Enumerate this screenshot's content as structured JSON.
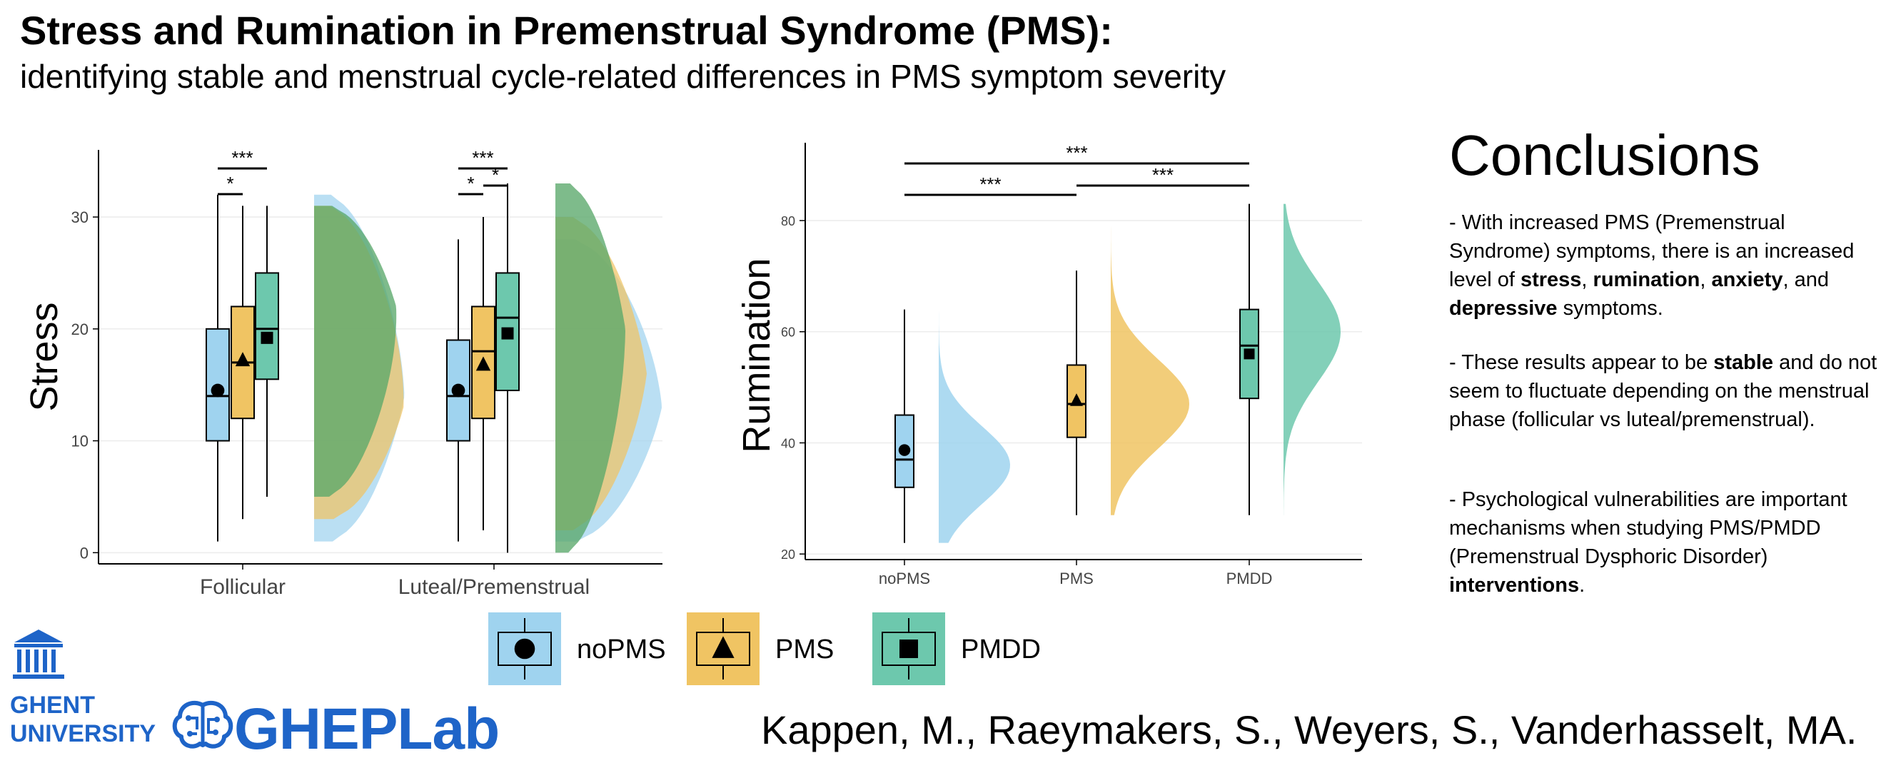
{
  "title": "Stress and Rumination in Premenstrual Syndrome (PMS):",
  "subtitle": "identifying stable and menstrual cycle-related differences in PMS symptom severity",
  "colors": {
    "noPMS": "#9fd3ef",
    "PMS": "#f0c463",
    "PMDD": "#6dc8ad",
    "PMDD_overlap": "#5aa86a",
    "logo_blue": "#1e64c8"
  },
  "chart_data": [
    {
      "type": "raincloud",
      "ylabel": "Stress",
      "xlabel": "",
      "categories": [
        "Follicular",
        "Luteal/Premenstrual"
      ],
      "ylim": [
        -1,
        36
      ],
      "yticks": [
        "0",
        "10",
        "20",
        "30"
      ],
      "grid": true,
      "series": [
        {
          "name": "noPMS",
          "marker": "circle",
          "box": [
            [
              1,
              10,
              14,
              20,
              32
            ],
            [
              1,
              10,
              14,
              19,
              28
            ]
          ],
          "mean": [
            14.5,
            14.5
          ]
        },
        {
          "name": "PMS",
          "marker": "triangle",
          "box": [
            [
              3,
              12,
              17,
              22,
              31
            ],
            [
              2,
              12,
              18,
              22,
              30
            ]
          ],
          "mean": [
            17.2,
            16.8
          ]
        },
        {
          "name": "PMDD",
          "marker": "square",
          "box": [
            [
              5,
              15.5,
              20,
              25,
              31
            ],
            [
              0,
              14.5,
              21,
              25,
              33
            ]
          ],
          "mean": [
            19.2,
            19.6
          ]
        }
      ],
      "significance": [
        {
          "group": "Follicular",
          "pair": [
            "noPMS",
            "PMS"
          ],
          "label": "*"
        },
        {
          "group": "Follicular",
          "pair": [
            "noPMS",
            "PMDD"
          ],
          "label": "***"
        },
        {
          "group": "Luteal/Premenstrual",
          "pair": [
            "noPMS",
            "PMS"
          ],
          "label": "*"
        },
        {
          "group": "Luteal/Premenstrual",
          "pair": [
            "PMS",
            "PMDD"
          ],
          "label": "*"
        },
        {
          "group": "Luteal/Premenstrual",
          "pair": [
            "noPMS",
            "PMDD"
          ],
          "label": "***"
        }
      ]
    },
    {
      "type": "raincloud",
      "ylabel": "Rumination",
      "xlabel": "",
      "categories": [
        "noPMS",
        "PMS",
        "PMDD"
      ],
      "ylim": [
        19,
        94
      ],
      "yticks": [
        "20",
        "40",
        "60",
        "80"
      ],
      "grid": true,
      "series": [
        {
          "name": "noPMS",
          "marker": "circle",
          "box": [
            22,
            32,
            37,
            45,
            64
          ],
          "mean": 38.7,
          "density_range": [
            22,
            65
          ]
        },
        {
          "name": "PMS",
          "marker": "triangle",
          "box": [
            27,
            41,
            47,
            54,
            71
          ],
          "mean": 47.6,
          "density_range": [
            27,
            83
          ]
        },
        {
          "name": "PMDD",
          "marker": "square",
          "box": [
            27,
            48,
            57.5,
            64,
            83
          ],
          "mean": 56,
          "density_range": [
            27,
            83
          ]
        }
      ],
      "significance": [
        {
          "pair": [
            "noPMS",
            "PMS"
          ],
          "label": "***"
        },
        {
          "pair": [
            "PMS",
            "PMDD"
          ],
          "label": "***"
        },
        {
          "pair": [
            "noPMS",
            "PMDD"
          ],
          "label": "***"
        }
      ]
    }
  ],
  "legend": {
    "position": "bottom-center",
    "items": [
      {
        "label": "noPMS",
        "marker": "circle",
        "color": "#9fd3ef"
      },
      {
        "label": "PMS",
        "marker": "triangle",
        "color": "#f0c463"
      },
      {
        "label": "PMDD",
        "marker": "square",
        "color": "#6dc8ad"
      }
    ]
  },
  "conclusions": {
    "heading": "Conclusions",
    "p1": [
      "- With increased PMS (Premenstrual Syndrome) symptoms, there is an increased level of ",
      "stress",
      ", ",
      "rumination",
      ", ",
      "anxiety",
      ", and ",
      "depressive",
      " symptoms."
    ],
    "p2": [
      "- These results  appear to be ",
      "stable",
      " and do not seem to fluctuate depending on the menstrual phase (follicular vs luteal/premenstrual)."
    ],
    "p3": [
      "- Psychological vulnerabilities are important mechanisms when studying PMS/PMDD (Premenstrual Dysphoric Disorder) ",
      "interventions",
      "."
    ]
  },
  "citation": "Kappen, M., Raeymakers, S., Weyers, S., Vanderhasselt, MA.",
  "logos": {
    "ghent_line1": "GHENT",
    "ghent_line2": "UNIVERSITY",
    "gheplab": "GHEPLab",
    "ghent_icon": "ghent-building-icon",
    "brain_icon": "brain-circuit-icon"
  }
}
